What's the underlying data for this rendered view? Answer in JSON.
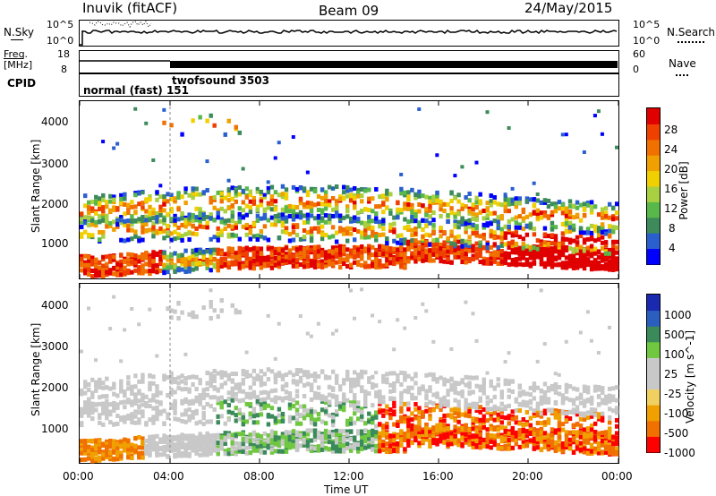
{
  "header": {
    "station": "Inuvik (fitACF)",
    "beam": "Beam 09",
    "date": "24/May/2015"
  },
  "panels": {
    "nsky_label": "N.Sky",
    "nsky_ticks": [
      "10^5",
      "10^0"
    ],
    "nsearch_label": "N.Search",
    "nsearch_ticks": [
      "10^5",
      "10^0"
    ],
    "freq_label_1": "Freq.",
    "freq_label_2": "[MHz]",
    "freq_ticks": [
      "18",
      "8"
    ],
    "nave_label": "Nave",
    "nave_ticks": [
      "60",
      "0"
    ],
    "cpid_label": "CPID",
    "cpid_1": "normal (fast) 151",
    "cpid_2": "twofsound 3503"
  },
  "colors": {
    "power_scale": [
      "#0000ff",
      "#2a5fcf",
      "#3d8a5a",
      "#58b84a",
      "#a8d040",
      "#f0d000",
      "#f0a000",
      "#f07000",
      "#f04000",
      "#e00000"
    ],
    "velocity_scale": [
      "#ff0000",
      "#f07000",
      "#f0a000",
      "#f0d060",
      "#c8c8c8",
      "#c8c8c8",
      "#70c840",
      "#3a8a5a",
      "#2a5fbf",
      "#1a2ab0"
    ]
  },
  "chart_data": [
    {
      "type": "heatmap",
      "title": "",
      "panel": "power",
      "ylabel": "Slant Range [km]",
      "yticks": [
        "4000",
        "3000",
        "2000",
        "1000"
      ],
      "ylim": [
        180,
        4500
      ],
      "xlim": [
        "00:00",
        "24:00"
      ],
      "colorbar_label": "Power [dB]",
      "colorbar_ticks": [
        "28",
        "24",
        "20",
        "16",
        "12",
        "8",
        "4"
      ]
    },
    {
      "type": "heatmap",
      "title": "",
      "panel": "velocity",
      "ylabel": "Slant Range [km]",
      "yticks": [
        "4000",
        "3000",
        "2000",
        "1000"
      ],
      "ylim": [
        180,
        4500
      ],
      "xlim": [
        "00:00",
        "24:00"
      ],
      "xticks": [
        "00:00",
        "04:00",
        "08:00",
        "12:00",
        "16:00",
        "20:00",
        "00:00"
      ],
      "xlabel": "Time UT",
      "colorbar_label": "Velocity [m s^-1]",
      "colorbar_ticks": [
        "1000",
        "500",
        "100",
        "25",
        "-25",
        "-100",
        "-500",
        "-1000"
      ]
    }
  ]
}
